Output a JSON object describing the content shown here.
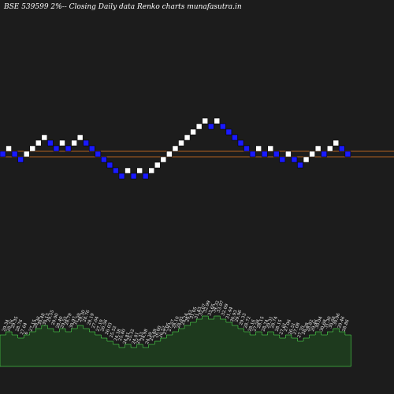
{
  "title": "BSE 539599 2%--  Closing Daily data  Renko   charts munafasutra.in",
  "colors": {
    "background": "#1c1c1c",
    "up_brick": "#ffffff",
    "down_brick": "#1a1aff",
    "line": "#b06020",
    "volume_fill": "#1e3a1e",
    "volume_stroke": "#55ff55"
  },
  "chart_data": {
    "type": "renko",
    "brick_size_percent": 2,
    "bricks": [
      {
        "dir": "down",
        "level": 0
      },
      {
        "dir": "up",
        "level": 1
      },
      {
        "dir": "down",
        "level": 0
      },
      {
        "dir": "down",
        "level": -1
      },
      {
        "dir": "up",
        "level": 0
      },
      {
        "dir": "up",
        "level": 1
      },
      {
        "dir": "up",
        "level": 2
      },
      {
        "dir": "up",
        "level": 3
      },
      {
        "dir": "down",
        "level": 2
      },
      {
        "dir": "down",
        "level": 1
      },
      {
        "dir": "up",
        "level": 2
      },
      {
        "dir": "down",
        "level": 1
      },
      {
        "dir": "up",
        "level": 2
      },
      {
        "dir": "up",
        "level": 3
      },
      {
        "dir": "down",
        "level": 2
      },
      {
        "dir": "down",
        "level": 1
      },
      {
        "dir": "down",
        "level": 0
      },
      {
        "dir": "down",
        "level": -1
      },
      {
        "dir": "down",
        "level": -2
      },
      {
        "dir": "down",
        "level": -3
      },
      {
        "dir": "down",
        "level": -4
      },
      {
        "dir": "up",
        "level": -3
      },
      {
        "dir": "down",
        "level": -4
      },
      {
        "dir": "up",
        "level": -3
      },
      {
        "dir": "down",
        "level": -4
      },
      {
        "dir": "up",
        "level": -3
      },
      {
        "dir": "up",
        "level": -2
      },
      {
        "dir": "up",
        "level": -1
      },
      {
        "dir": "up",
        "level": 0
      },
      {
        "dir": "up",
        "level": 1
      },
      {
        "dir": "up",
        "level": 2
      },
      {
        "dir": "up",
        "level": 3
      },
      {
        "dir": "up",
        "level": 4
      },
      {
        "dir": "up",
        "level": 5
      },
      {
        "dir": "up",
        "level": 6
      },
      {
        "dir": "down",
        "level": 5
      },
      {
        "dir": "up",
        "level": 6
      },
      {
        "dir": "down",
        "level": 5
      },
      {
        "dir": "down",
        "level": 4
      },
      {
        "dir": "down",
        "level": 3
      },
      {
        "dir": "down",
        "level": 2
      },
      {
        "dir": "down",
        "level": 1
      },
      {
        "dir": "down",
        "level": 0
      },
      {
        "dir": "up",
        "level": 1
      },
      {
        "dir": "down",
        "level": 0
      },
      {
        "dir": "up",
        "level": 1
      },
      {
        "dir": "down",
        "level": 0
      },
      {
        "dir": "down",
        "level": -1
      },
      {
        "dir": "up",
        "level": 0
      },
      {
        "dir": "down",
        "level": -1
      },
      {
        "dir": "down",
        "level": -2
      },
      {
        "dir": "up",
        "level": -1
      },
      {
        "dir": "up",
        "level": 0
      },
      {
        "dir": "up",
        "level": 1
      },
      {
        "dir": "down",
        "level": 0
      },
      {
        "dir": "up",
        "level": 1
      },
      {
        "dir": "up",
        "level": 2
      },
      {
        "dir": "down",
        "level": 1
      },
      {
        "dir": "down",
        "level": 0
      }
    ],
    "horizontal_lines_level": [
      1,
      -1
    ],
    "price_labels": [
      "29.34",
      "28.76",
      "29.35",
      "28.76",
      "27.64",
      "6",
      "27.15",
      "28.36",
      "30.48",
      "30.13",
      "29.55",
      "29.00",
      "28.40",
      "29.55",
      "28.79",
      "30.97",
      "31.59",
      "29.30",
      "28.76",
      "28.19",
      "27.64",
      "27.10",
      "26.56",
      "26.03",
      "25.52",
      "24.38",
      "25.80",
      "24.81",
      "25.32",
      "24.81",
      "25.33",
      "24.98",
      "24.39",
      "25.49",
      "26.00",
      "26.52",
      "27.05",
      "27.57",
      "28.10",
      "28.65",
      "29.24",
      "29.83",
      "31.05",
      "31.43",
      "32.07",
      "32.99",
      "33.65",
      "34.32",
      "33.97",
      "32.09",
      "31.44",
      "30.93",
      "29.96",
      "29.33",
      "28.72",
      "28.16",
      "27.58",
      "28.15",
      "28.74",
      "29.31",
      "28.74",
      "28.15",
      "27.61",
      "27.06",
      "26.51",
      "27.08",
      "27.70",
      "28.28",
      "28.82",
      "29.46",
      "30.04",
      "30.68",
      "31.30",
      "30.68",
      "30.06",
      "29.46",
      "28.86"
    ]
  }
}
